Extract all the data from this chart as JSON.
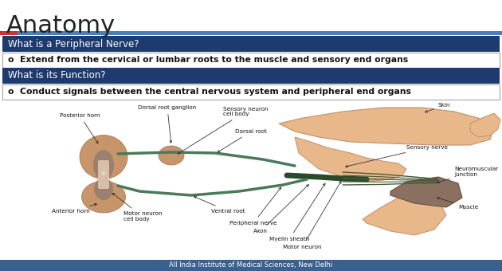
{
  "title": "Anatomy",
  "title_color": "#222222",
  "title_fontsize": 22,
  "bg_color": "#ffffff",
  "accent_red": "#cc3333",
  "accent_blue": "#4a7fbf",
  "section1_title": "What is a Peripheral Nerve?",
  "section1_text": "o  Extend from the cervical or lumbar roots to the muscle and sensory end organs",
  "section2_title": "What is its Function?",
  "section2_text": "o  Conduct signals between the central nervous system and peripheral end organs",
  "footer_text": "All India Institute of Medical Sciences, New Delhi",
  "footer_bg": "#3a6090",
  "footer_text_color": "#ffffff",
  "section_header_bg": "#1e3a6e",
  "section_header_text_color": "#ffffff",
  "section_text_bg": "#ffffff",
  "section_text_color": "#111111",
  "section_border_color": "#999999",
  "spine_color": "#c8956a",
  "spine_inner": "#b07858",
  "spine_gray": "#9a8070",
  "nerve_green": "#4a7a5a",
  "nerve_dark": "#2a4a2a",
  "skin_color": "#e8b88a",
  "skin_edge": "#c09070",
  "muscle_color": "#8a7060",
  "muscle_edge": "#6a5040"
}
